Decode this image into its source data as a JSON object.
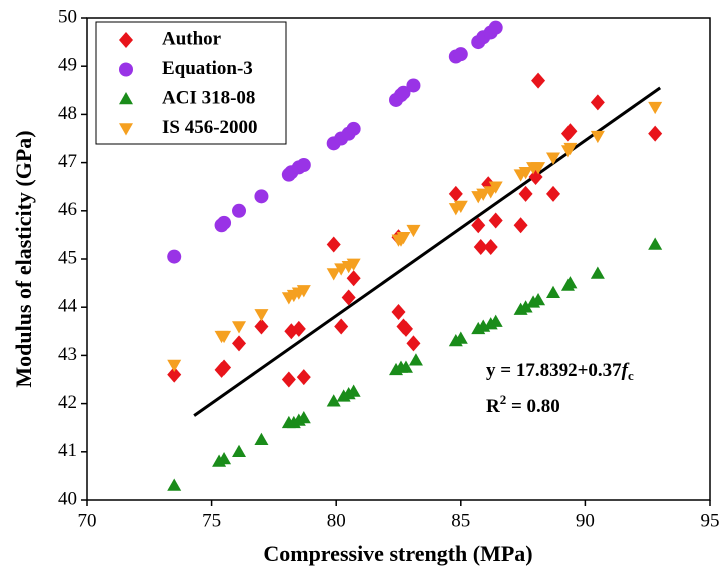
{
  "chart_data": {
    "type": "scatter",
    "xlabel": "Compressive strength (MPa)",
    "ylabel": "Modulus of elasticity (GPa)",
    "xlim": [
      70,
      95
    ],
    "xticks": [
      70,
      75,
      80,
      85,
      90,
      95
    ],
    "ylim": [
      40,
      50
    ],
    "yticks": [
      40,
      41,
      42,
      43,
      44,
      45,
      46,
      47,
      48,
      49,
      50
    ],
    "legend": "upper-left",
    "series": [
      {
        "name": "Author",
        "color": "#e8141b",
        "marker": "diamond",
        "x": [
          73.5,
          75.4,
          75.5,
          76.1,
          77.0,
          78.1,
          78.2,
          78.5,
          78.7,
          79.9,
          80.2,
          80.5,
          80.7,
          82.5,
          82.5,
          82.7,
          82.8,
          83.1,
          84.8,
          85.7,
          85.8,
          86.1,
          86.2,
          86.4,
          87.4,
          87.6,
          88.0,
          88.1,
          88.7,
          89.3,
          89.4,
          90.5,
          92.8
        ],
        "values": [
          42.6,
          42.7,
          42.75,
          43.25,
          43.6,
          42.5,
          43.5,
          43.55,
          42.55,
          45.3,
          43.6,
          44.2,
          44.6,
          45.45,
          43.9,
          43.6,
          43.55,
          43.25,
          46.35,
          45.7,
          45.25,
          46.55,
          45.25,
          45.8,
          45.7,
          46.35,
          46.7,
          48.7,
          46.35,
          47.6,
          47.65,
          48.25,
          47.6
        ]
      },
      {
        "name": "Equation-3",
        "color": "#9933e6",
        "marker": "circle",
        "x": [
          73.5,
          75.4,
          75.5,
          76.1,
          77.0,
          78.1,
          78.2,
          78.5,
          78.7,
          79.9,
          80.2,
          80.5,
          80.7,
          82.4,
          82.6,
          82.7,
          83.1,
          84.8,
          85.0,
          85.7,
          85.9,
          86.2,
          86.4
        ],
        "values": [
          45.05,
          45.7,
          45.75,
          46.0,
          46.3,
          46.75,
          46.8,
          46.9,
          46.95,
          47.4,
          47.5,
          47.6,
          47.7,
          48.3,
          48.4,
          48.45,
          48.6,
          49.2,
          49.25,
          49.5,
          49.6,
          49.7,
          49.8
        ]
      },
      {
        "name": "ACI 318-08",
        "color": "#1a8c1a",
        "marker": "triangle-up",
        "x": [
          73.5,
          75.3,
          75.5,
          76.1,
          77.0,
          78.1,
          78.3,
          78.5,
          78.7,
          79.9,
          80.3,
          80.5,
          80.7,
          82.4,
          82.6,
          82.8,
          83.2,
          84.8,
          85.0,
          85.7,
          85.9,
          86.2,
          86.4,
          87.4,
          87.6,
          87.9,
          88.1,
          88.7,
          89.3,
          89.4,
          90.5,
          92.8
        ],
        "values": [
          40.3,
          40.8,
          40.85,
          41.0,
          41.25,
          41.6,
          41.6,
          41.65,
          41.7,
          42.05,
          42.15,
          42.2,
          42.25,
          42.7,
          42.75,
          42.75,
          42.9,
          43.3,
          43.35,
          43.55,
          43.6,
          43.65,
          43.7,
          43.95,
          44.0,
          44.1,
          44.15,
          44.3,
          44.45,
          44.5,
          44.7,
          45.3
        ]
      },
      {
        "name": "IS 456-2000",
        "color": "#f5a020",
        "marker": "triangle-down",
        "x": [
          73.5,
          75.4,
          75.5,
          76.1,
          77.0,
          78.1,
          78.3,
          78.5,
          78.7,
          79.9,
          80.2,
          80.5,
          80.7,
          82.5,
          82.6,
          82.7,
          83.1,
          84.8,
          85.0,
          85.7,
          85.9,
          86.2,
          86.4,
          87.4,
          87.6,
          87.9,
          88.1,
          88.7,
          89.3,
          89.4,
          90.5,
          92.8
        ],
        "values": [
          42.8,
          43.4,
          43.4,
          43.6,
          43.85,
          44.2,
          44.25,
          44.3,
          44.35,
          44.7,
          44.8,
          44.85,
          44.9,
          45.4,
          45.4,
          45.45,
          45.6,
          46.05,
          46.1,
          46.3,
          46.35,
          46.4,
          46.5,
          46.75,
          46.8,
          46.9,
          46.9,
          47.1,
          47.25,
          47.3,
          47.55,
          48.15
        ]
      }
    ],
    "fit_line": {
      "color": "#000000",
      "x": [
        74.3,
        93.0
      ],
      "values": [
        41.75,
        48.55
      ]
    },
    "equation": {
      "text": "y = 17.8392+0.37",
      "var": "f",
      "sub": "c"
    },
    "r2": {
      "base": "R",
      "sup": "2",
      "text": " = 0.80"
    }
  }
}
